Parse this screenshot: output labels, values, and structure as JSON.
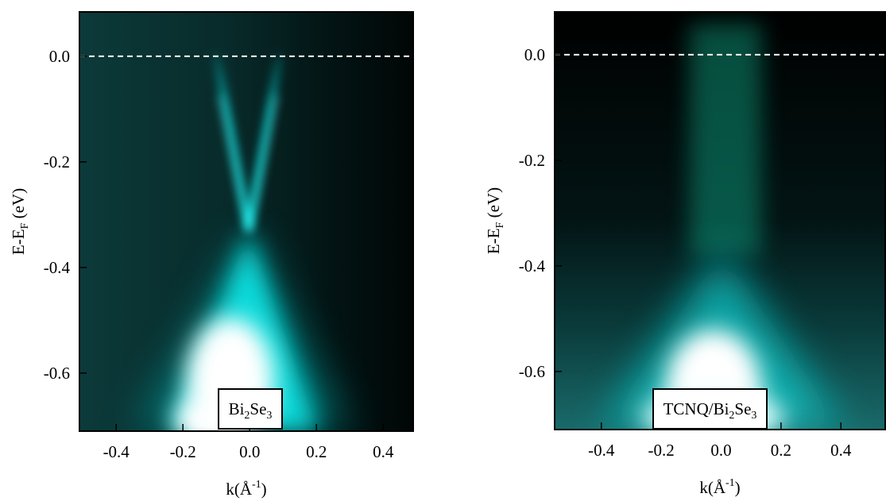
{
  "chart_data": [
    {
      "type": "image",
      "xlim": [
        -0.51,
        0.49
      ],
      "ylim": [
        -0.71,
        0.084
      ],
      "xticks": [
        -0.4,
        -0.2,
        {
          "value": 0,
          "label": "0.0"
        },
        0.2,
        0.4
      ],
      "yticks": [
        {
          "value": 0,
          "label": "0.0"
        },
        -0.2,
        -0.4,
        -0.6
      ],
      "xlabel": [
        "k(Å",
        "-1",
        ")"
      ],
      "ylabel": [
        "E-E",
        "F",
        " (eV)"
      ],
      "annotation": [
        "Bi",
        "2",
        "Se",
        "3"
      ],
      "fermi_line": 0
    },
    {
      "type": "image",
      "xlim": [
        -0.556,
        0.548
      ],
      "ylim": [
        -0.71,
        0.081
      ],
      "xticks": [
        -0.4,
        -0.2,
        {
          "value": 0,
          "label": "0.0"
        },
        0.2,
        0.4
      ],
      "yticks": [
        {
          "value": 0,
          "label": "0.0"
        },
        -0.2,
        -0.4,
        -0.6
      ],
      "xlabel": [
        "k(Å",
        "-1",
        ")"
      ],
      "ylabel": [
        "E-E",
        "F",
        " (eV)"
      ],
      "annotation": [
        "TCNQ/Bi",
        "2",
        "Se",
        "3"
      ],
      "fermi_line": 0
    }
  ]
}
